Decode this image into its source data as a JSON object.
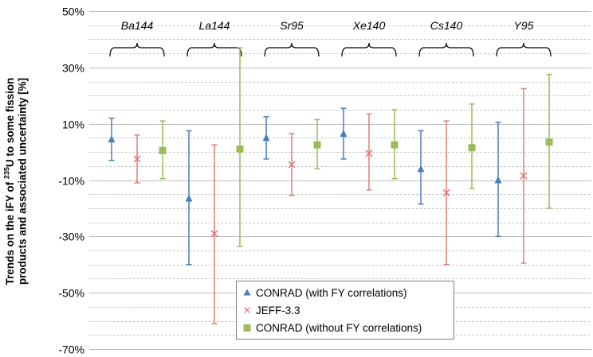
{
  "y_axis_label_prefix": "Trends on the iFY of ",
  "y_axis_label_sup": "235",
  "y_axis_label_suffix": "U to some fission",
  "y_axis_label_line2": "products and associated uncertainty  [%]",
  "legend": {
    "items": [
      {
        "label": "CONRAD (with FY correlations)",
        "color": "#4a7ebb",
        "marker": "triangle"
      },
      {
        "label": "JEFF-3.3",
        "color": "#e07e7a",
        "marker": "cross"
      },
      {
        "label": "CONRAD (without FY correlations)",
        "color": "#9bbb59",
        "marker": "square"
      }
    ]
  },
  "chart_data": {
    "type": "scatter",
    "error_bars": true,
    "grid": true,
    "ylim": [
      -70,
      50
    ],
    "yticks": [
      "50%",
      "30%",
      "10%",
      "-10%",
      "-30%",
      "-50%",
      "-70%"
    ],
    "groups": [
      "Ba144",
      "La144",
      "Sr95",
      "Xe140",
      "Cs140",
      "Y95"
    ],
    "series": [
      {
        "name": "CONRAD (with FY correlations)",
        "color": "#4a7ebb",
        "marker": "triangle",
        "values": [
          4.5,
          -16.5,
          5.0,
          6.5,
          -6.0,
          -10.0
        ],
        "lower": [
          -3.0,
          -40.0,
          -2.5,
          -2.5,
          -18.5,
          -30.0
        ],
        "upper": [
          12.0,
          7.5,
          12.5,
          15.5,
          7.5,
          10.5
        ]
      },
      {
        "name": "JEFF-3.3",
        "color": "#e07e7a",
        "marker": "cross",
        "values": [
          -2.5,
          -29.0,
          -4.5,
          -0.5,
          -14.5,
          -8.5
        ],
        "lower": [
          -11.0,
          -61.0,
          -15.5,
          -13.5,
          -40.0,
          -39.5
        ],
        "upper": [
          6.0,
          2.5,
          6.5,
          13.5,
          11.0,
          22.5
        ]
      },
      {
        "name": "CONRAD (without FY correlations)",
        "color": "#9bbb59",
        "marker": "square",
        "values": [
          0.5,
          1.0,
          2.5,
          2.5,
          1.5,
          3.5
        ],
        "lower": [
          -9.5,
          -33.5,
          -6.0,
          -9.5,
          -13.0,
          -20.0
        ],
        "upper": [
          11.0,
          37.0,
          11.5,
          15.0,
          17.0,
          27.5
        ]
      }
    ]
  }
}
